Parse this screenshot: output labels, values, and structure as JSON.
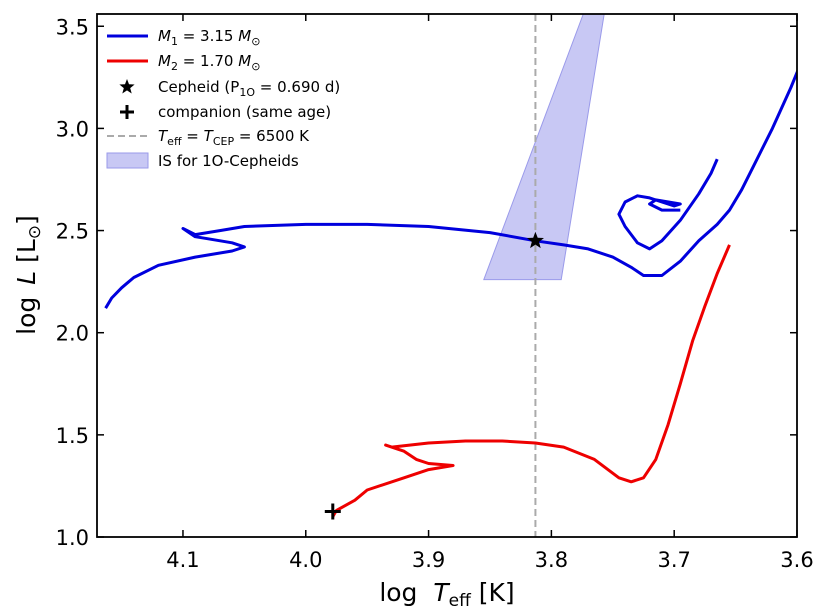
{
  "chart_data": {
    "type": "line",
    "title": "",
    "xlabel": "log  T_eff [K]",
    "ylabel": "log  L [L_sun]",
    "xlim": [
      4.17,
      3.6
    ],
    "ylim": [
      1.0,
      3.56
    ],
    "x_ticks": [
      4.1,
      4.0,
      3.9,
      3.8,
      3.7,
      3.6
    ],
    "x_tick_labels": [
      "4.1",
      "4.0",
      "3.9",
      "3.8",
      "3.7",
      "3.6"
    ],
    "y_ticks": [
      1.0,
      1.5,
      2.0,
      2.5,
      3.0,
      3.5
    ],
    "y_tick_labels": [
      "1.0",
      "1.5",
      "2.0",
      "2.5",
      "3.0",
      "3.5"
    ],
    "grid": false,
    "legend_position": "top-left",
    "legend": {
      "m1": "M₁ = 3.15 M⊙",
      "m2": "M₂ = 1.70 M⊙",
      "cepheid": "Cepheid (P₁ₒ = 0.690 d)",
      "companion": "companion (same age)",
      "teff_line": "T_eff = T_CEP = 6500 K",
      "is_band": "IS for 1O-Cepheids"
    },
    "colors": {
      "m1": "#0000dd",
      "m2": "#ee0000",
      "teff_line": "#aaaaaa",
      "is_band_fill": "#c8c8f4",
      "is_band_edge": "#9a9aea",
      "marker": "#000000"
    },
    "series": [
      {
        "name": "M1 = 3.15 Msun track",
        "points": [
          [
            4.163,
            2.12
          ],
          [
            4.158,
            2.17
          ],
          [
            4.15,
            2.22
          ],
          [
            4.14,
            2.27
          ],
          [
            4.12,
            2.33
          ],
          [
            4.09,
            2.37
          ],
          [
            4.06,
            2.4
          ],
          [
            4.05,
            2.42
          ],
          [
            4.06,
            2.44
          ],
          [
            4.08,
            2.46
          ],
          [
            4.09,
            2.47
          ],
          [
            4.1,
            2.51
          ],
          [
            4.09,
            2.48
          ],
          [
            4.07,
            2.5
          ],
          [
            4.05,
            2.52
          ],
          [
            4.0,
            2.53
          ],
          [
            3.95,
            2.53
          ],
          [
            3.9,
            2.52
          ],
          [
            3.85,
            2.49
          ],
          [
            3.813,
            2.45
          ],
          [
            3.79,
            2.43
          ],
          [
            3.77,
            2.41
          ],
          [
            3.75,
            2.37
          ],
          [
            3.735,
            2.32
          ],
          [
            3.725,
            2.28
          ],
          [
            3.71,
            2.28
          ],
          [
            3.695,
            2.35
          ],
          [
            3.68,
            2.45
          ],
          [
            3.665,
            2.53
          ],
          [
            3.655,
            2.6
          ],
          [
            3.645,
            2.7
          ],
          [
            3.635,
            2.82
          ],
          [
            3.62,
            3.0
          ],
          [
            3.605,
            3.2
          ],
          [
            3.59,
            3.42
          ],
          [
            3.58,
            3.58
          ]
        ]
      },
      {
        "name": "M1 = 3.15 Msun blue loop",
        "points": [
          [
            3.665,
            2.85
          ],
          [
            3.67,
            2.78
          ],
          [
            3.68,
            2.68
          ],
          [
            3.695,
            2.55
          ],
          [
            3.71,
            2.45
          ],
          [
            3.72,
            2.41
          ],
          [
            3.73,
            2.44
          ],
          [
            3.74,
            2.52
          ],
          [
            3.745,
            2.58
          ],
          [
            3.74,
            2.64
          ],
          [
            3.73,
            2.67
          ],
          [
            3.72,
            2.66
          ],
          [
            3.71,
            2.64
          ],
          [
            3.7,
            2.62
          ],
          [
            3.695,
            2.63
          ],
          [
            3.715,
            2.65
          ],
          [
            3.72,
            2.63
          ],
          [
            3.71,
            2.6
          ],
          [
            3.695,
            2.6
          ]
        ]
      },
      {
        "name": "M2 = 1.70 Msun track",
        "points": [
          [
            3.978,
            1.1
          ],
          [
            3.975,
            1.13
          ],
          [
            3.96,
            1.18
          ],
          [
            3.95,
            1.23
          ],
          [
            3.92,
            1.29
          ],
          [
            3.9,
            1.33
          ],
          [
            3.88,
            1.35
          ],
          [
            3.9,
            1.36
          ],
          [
            3.91,
            1.38
          ],
          [
            3.92,
            1.42
          ],
          [
            3.925,
            1.43
          ],
          [
            3.935,
            1.45
          ],
          [
            3.93,
            1.44
          ],
          [
            3.9,
            1.46
          ],
          [
            3.87,
            1.47
          ],
          [
            3.84,
            1.47
          ],
          [
            3.813,
            1.46
          ],
          [
            3.79,
            1.44
          ],
          [
            3.765,
            1.38
          ],
          [
            3.745,
            1.29
          ],
          [
            3.735,
            1.27
          ],
          [
            3.725,
            1.29
          ],
          [
            3.715,
            1.38
          ],
          [
            3.705,
            1.55
          ],
          [
            3.695,
            1.75
          ],
          [
            3.685,
            1.96
          ],
          [
            3.675,
            2.13
          ],
          [
            3.665,
            2.29
          ],
          [
            3.655,
            2.43
          ]
        ]
      }
    ],
    "instability_strip": [
      [
        3.855,
        2.26
      ],
      [
        3.792,
        2.26
      ],
      [
        3.757,
        3.56
      ],
      [
        3.774,
        3.56
      ]
    ],
    "cepheid": {
      "x": 3.813,
      "y": 2.45
    },
    "companion": {
      "x": 3.978,
      "y": 1.125
    },
    "teff_line_x": 3.813
  }
}
